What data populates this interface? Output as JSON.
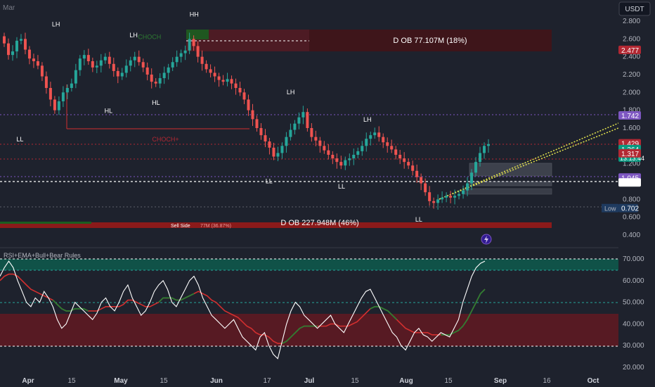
{
  "header": {
    "corner_label": "Mar",
    "currency_button": "USDT"
  },
  "indicator": {
    "title": "RSI+EMA+Bull+Bear Rules"
  },
  "chart_data": [
    {
      "type": "candlestick",
      "price_axis_ticks": [
        "2.800",
        "2.600",
        "2.400",
        "2.200",
        "2.000",
        "1.800",
        "1.600",
        "1.400",
        "1.200",
        "1.000",
        "0.800",
        "0.600",
        "0.400"
      ],
      "ylim": [
        0.3,
        2.95
      ],
      "time_axis_ticks": [
        "Apr",
        "15",
        "May",
        "15",
        "Jun",
        "17",
        "Jul",
        "15",
        "Aug",
        "15",
        "Sep",
        "16",
        "Oct"
      ],
      "ohlc_close_path": [
        2.55,
        2.42,
        2.46,
        2.58,
        2.6,
        2.48,
        2.38,
        2.35,
        2.3,
        2.18,
        2.05,
        1.92,
        1.8,
        1.9,
        2.0,
        2.05,
        2.1,
        2.25,
        2.38,
        2.42,
        2.35,
        2.28,
        2.3,
        2.36,
        2.4,
        2.32,
        2.24,
        2.18,
        2.22,
        2.3,
        2.36,
        2.4,
        2.34,
        2.28,
        2.2,
        2.12,
        2.1,
        2.16,
        2.22,
        2.28,
        2.34,
        2.4,
        2.44,
        2.47,
        2.6,
        2.52,
        2.4,
        2.32,
        2.26,
        2.22,
        2.18,
        2.14,
        2.12,
        2.15,
        2.1,
        2.05,
        2.0,
        1.92,
        1.8,
        1.7,
        1.6,
        1.52,
        1.45,
        1.38,
        1.28,
        1.32,
        1.4,
        1.5,
        1.58,
        1.65,
        1.72,
        1.78,
        1.6,
        1.5,
        1.46,
        1.4,
        1.35,
        1.3,
        1.26,
        1.22,
        1.18,
        1.24,
        1.26,
        1.3,
        1.34,
        1.4,
        1.48,
        1.52,
        1.55,
        1.5,
        1.44,
        1.4,
        1.36,
        1.3,
        1.26,
        1.22,
        1.18,
        1.12,
        1.05,
        0.98,
        0.88,
        0.78,
        0.76,
        0.8,
        0.82,
        0.84,
        0.82,
        0.84,
        0.86,
        0.9,
        0.98,
        1.1,
        1.22,
        1.32,
        1.4,
        1.42
      ],
      "price_labels": [
        {
          "value": "2.477",
          "color": "#b22833"
        },
        {
          "value": "1.742",
          "color": "#7e57c2"
        },
        {
          "value": "1.429",
          "color": "#b22833"
        },
        {
          "value": "1.364",
          "sub": "13:13:44",
          "color": "#089981"
        },
        {
          "value": "1.317",
          "color": "#b22833"
        },
        {
          "value": "1.045",
          "color": "#7e57c2"
        },
        {
          "value": "0.990",
          "color": "#ffffff"
        },
        {
          "value": "0.702",
          "prefix": "Low",
          "color": "#1e222d"
        }
      ],
      "structure_labels": [
        {
          "text": "HH",
          "x": "May 24",
          "y": 2.85
        },
        {
          "text": "LH",
          "x": "Apr 10",
          "y": 2.74
        },
        {
          "text": "LH",
          "x": "May 5",
          "y": 2.62
        },
        {
          "text": "LH",
          "x": "Jun 25",
          "y": 1.98
        },
        {
          "text": "LH",
          "x": "Jul 19",
          "y": 1.67
        },
        {
          "text": "HL",
          "x": "Apr 27",
          "y": 1.77
        },
        {
          "text": "HL",
          "x": "May 12",
          "y": 1.86
        },
        {
          "text": "LL",
          "x": "Mar 26",
          "y": 1.45
        },
        {
          "text": "LL",
          "x": "Jun 18",
          "y": 0.98
        },
        {
          "text": "LL",
          "x": "Jul 11",
          "y": 0.92
        },
        {
          "text": "LL",
          "x": "Aug 5",
          "y": 0.55
        },
        {
          "text": "CHOCH",
          "x": "May 10",
          "y": 2.6,
          "color": "#2e7d32"
        },
        {
          "text": "CHOCH+",
          "x": "May 15",
          "y": 1.45,
          "color": "#b22833"
        }
      ],
      "zones": [
        {
          "label": "D OB 77.107M (18%)",
          "top": 2.67,
          "bottom": 2.42,
          "color": "#5d1a22"
        },
        {
          "label": "D OB 227.948M (46%)",
          "top": 0.52,
          "bottom": 0.47,
          "color": "#8b1a1a"
        }
      ],
      "annotations": [
        "Sell Side",
        "77M (36.87%)"
      ]
    },
    {
      "type": "line",
      "title": "RSI+EMA+Bull+Bear Rules",
      "y_axis_ticks": [
        "70.000",
        "60.000",
        "50.000",
        "40.000",
        "30.000",
        "20.000"
      ],
      "ylim": [
        18,
        74
      ],
      "series": [
        {
          "color": "#ffffff",
          "values": [
            62,
            66,
            69,
            66,
            60,
            55,
            50,
            48,
            52,
            50,
            55,
            52,
            48,
            42,
            38,
            40,
            45,
            50,
            48,
            46,
            44,
            42,
            45,
            50,
            52,
            48,
            46,
            50,
            55,
            58,
            52,
            48,
            44,
            46,
            50,
            55,
            58,
            60,
            56,
            50,
            48,
            52,
            56,
            60,
            62,
            58,
            52,
            48,
            44,
            42,
            40,
            38,
            40,
            42,
            38,
            34,
            32,
            30,
            28,
            34,
            36,
            30,
            26,
            24,
            32,
            40,
            46,
            50,
            48,
            44,
            42,
            40,
            38,
            40,
            42,
            44,
            40,
            38,
            36,
            40,
            44,
            48,
            52,
            55,
            56,
            52,
            48,
            44,
            40,
            36,
            34,
            30,
            28,
            32,
            36,
            38,
            35,
            34,
            32,
            34,
            36,
            35,
            34,
            38,
            42,
            50,
            56,
            62,
            66,
            68,
            69
          ]
        },
        {
          "color": "#d32f2f",
          "values": [
            60,
            62,
            63,
            63,
            62,
            60,
            58,
            56,
            55,
            54,
            53,
            52,
            51,
            49,
            47,
            46,
            46,
            47,
            47,
            47,
            46,
            46,
            46,
            47,
            48,
            48,
            48,
            48,
            49,
            51,
            51,
            50,
            49,
            48,
            48,
            49,
            50,
            52,
            52,
            52,
            51,
            51,
            52,
            53,
            54,
            55,
            54,
            53,
            51,
            50,
            48,
            46,
            45,
            44,
            43,
            41,
            39,
            38,
            36,
            35,
            35,
            34,
            32,
            31,
            31,
            32,
            34,
            36,
            38,
            39,
            39,
            39,
            39,
            39,
            39,
            40,
            40,
            39,
            39,
            39,
            40,
            41,
            43,
            45,
            47,
            48,
            48,
            47,
            46,
            44,
            42,
            40,
            38,
            37,
            36,
            36,
            36,
            36,
            35,
            35,
            35,
            35,
            35,
            36,
            37,
            39,
            42,
            46,
            50,
            54,
            56
          ]
        },
        {
          "color": "#2e7d32",
          "segments": [
            [
              12,
              20
            ],
            [
              36,
              44
            ],
            [
              64,
              72
            ],
            [
              84,
              90
            ],
            [
              100,
              112
            ]
          ]
        }
      ],
      "bands": [
        {
          "from": 65,
          "to": 70,
          "color": "#0e5a4e"
        },
        {
          "from": 30,
          "to": 45,
          "color": "#5d1a22"
        }
      ]
    }
  ]
}
